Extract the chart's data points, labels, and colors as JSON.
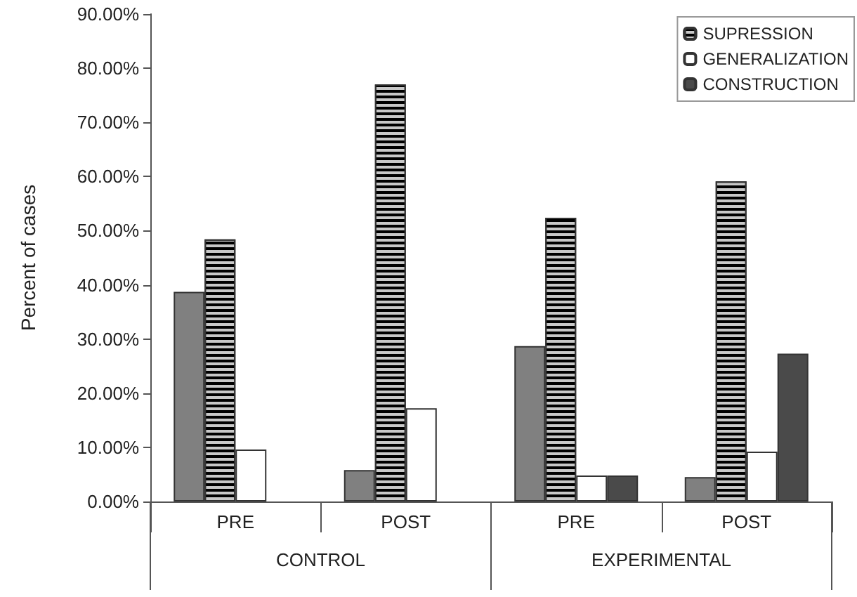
{
  "chart_data": {
    "type": "bar",
    "ylabel": "Percent of cases",
    "categories": [
      "PRE",
      "POST",
      "PRE",
      "POST"
    ],
    "annotations": [
      "CONTROL",
      "EXPERIMENTAL"
    ],
    "series": [
      {
        "color": "#808080",
        "values": [
          38.7,
          5.8,
          28.7,
          4.5
        ]
      },
      {
        "name": "SUPRESSION",
        "color": "#c8c8c8",
        "values": [
          48.4,
          77.0,
          52.4,
          59.1
        ]
      },
      {
        "name": "GENERALIZATION",
        "color": "#ffffff",
        "values": [
          9.6,
          17.2,
          4.8,
          9.2
        ]
      },
      {
        "name": "CONSTRUCTION",
        "color": "#4a4a4a",
        "values": [
          null,
          null,
          4.8,
          27.3
        ]
      }
    ],
    "ylim": [
      0,
      90
    ],
    "yticks": [
      {
        "value": 0,
        "label": "0.00%"
      },
      {
        "value": 10,
        "label": "10.00%"
      },
      {
        "value": 20,
        "label": "20.00%"
      },
      {
        "value": 30,
        "label": "30.00%"
      },
      {
        "value": 40,
        "label": "40.00%"
      },
      {
        "value": 50,
        "label": "50.00%"
      },
      {
        "value": 60,
        "label": "60.00%"
      },
      {
        "value": 70,
        "label": "70.00%"
      },
      {
        "value": 80,
        "label": "80.00%"
      },
      {
        "value": 90,
        "label": "90.00%"
      }
    ],
    "grid": false,
    "legend": "top right"
  }
}
